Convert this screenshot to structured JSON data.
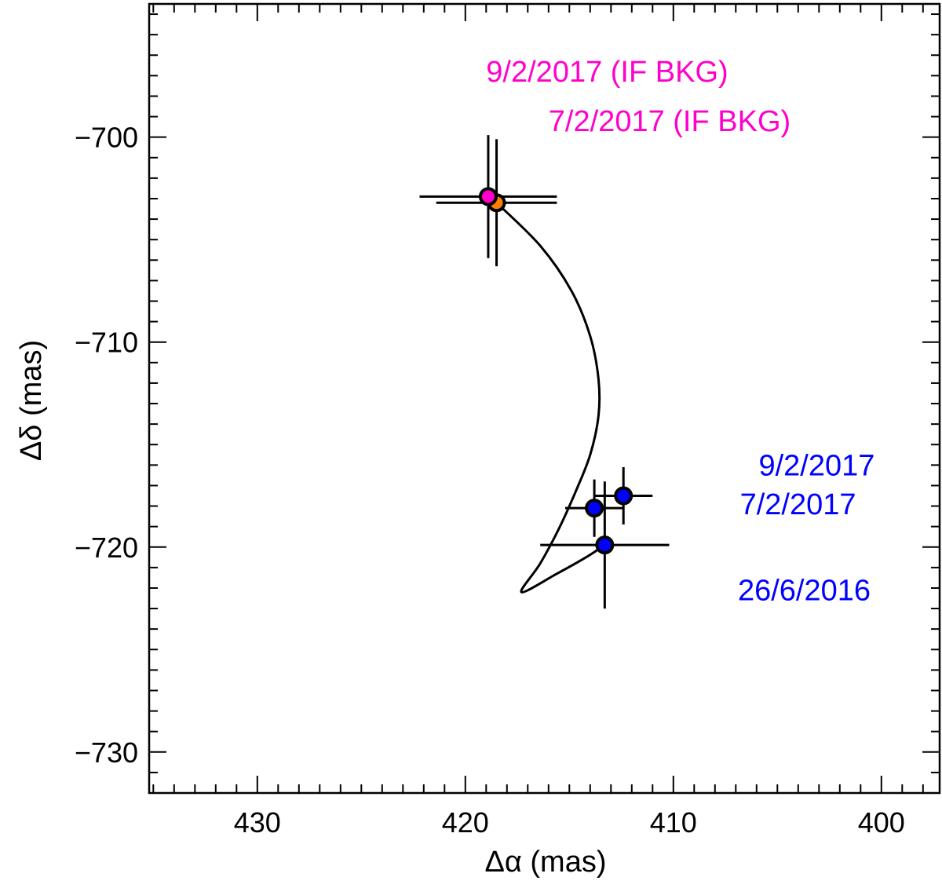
{
  "chart_data": {
    "type": "scatter",
    "title": "",
    "xlabel": "Δα (mas)",
    "ylabel": "Δδ (mas)",
    "xlim": [
      435.2,
      397.2
    ],
    "ylim": [
      -732,
      -693.5
    ],
    "x_ticks": [
      430,
      420,
      410,
      400
    ],
    "x_tick_labels": [
      "430",
      "420",
      "410",
      "400"
    ],
    "y_ticks": [
      -700,
      -710,
      -720,
      -730
    ],
    "y_tick_labels": [
      "−700",
      "−710",
      "−720",
      "−730"
    ],
    "x_minor_step": 1,
    "y_minor_step": 1,
    "grid": false,
    "colors": {
      "bkg": "#ff00cc",
      "obs": "#0000ff",
      "orange": "#ff7f00",
      "curve": "#000000",
      "frame": "#000000"
    },
    "series": [
      {
        "name": "",
        "color": "#ff7f00",
        "points": [
          {
            "x": 418.5,
            "y": -703.2,
            "xerr": 2.9,
            "yerr": 3.1
          }
        ]
      },
      {
        "name": "",
        "color": "#ff00cc",
        "points": [
          {
            "x": 418.9,
            "y": -702.9,
            "xerr": 3.3,
            "yerr": 3.0
          }
        ]
      },
      {
        "name": "",
        "color": "#0000ff",
        "points": [
          {
            "x": 413.3,
            "y": -719.9,
            "xerr": 3.1,
            "yerr": 3.1
          },
          {
            "x": 413.8,
            "y": -718.1,
            "xerr": 1.4,
            "yerr": 1.4
          },
          {
            "x": 412.4,
            "y": -717.5,
            "xerr": 1.4,
            "yerr": 1.4
          }
        ]
      }
    ],
    "curve": {
      "x": [
        418.5,
        416.4,
        414.9,
        414.0,
        413.6,
        413.6,
        414.0,
        414.7,
        415.5,
        416.4,
        417.3,
        415.6,
        414.2,
        413.3
      ],
      "y": [
        -703.2,
        -705.3,
        -707.5,
        -709.7,
        -711.8,
        -713.6,
        -715.5,
        -717.3,
        -719.1,
        -720.8,
        -722.2,
        -721.3,
        -720.5,
        -719.9
      ]
    },
    "annotations": [
      {
        "text": "9/2/2017 (IF BKG)",
        "x": 419.0,
        "y": -697.3,
        "color": "#ff00cc"
      },
      {
        "text": "7/2/2017 (IF BKG)",
        "x": 416.0,
        "y": -699.7,
        "color": "#ff00cc"
      },
      {
        "text": "9/2/2017",
        "x": 405.9,
        "y": -716.5,
        "color": "#0000ff"
      },
      {
        "text": "7/2/2017",
        "x": 406.8,
        "y": -718.4,
        "color": "#0000ff"
      },
      {
        "text": "26/6/2016",
        "x": 406.9,
        "y": -722.6,
        "color": "#0000ff"
      }
    ]
  }
}
